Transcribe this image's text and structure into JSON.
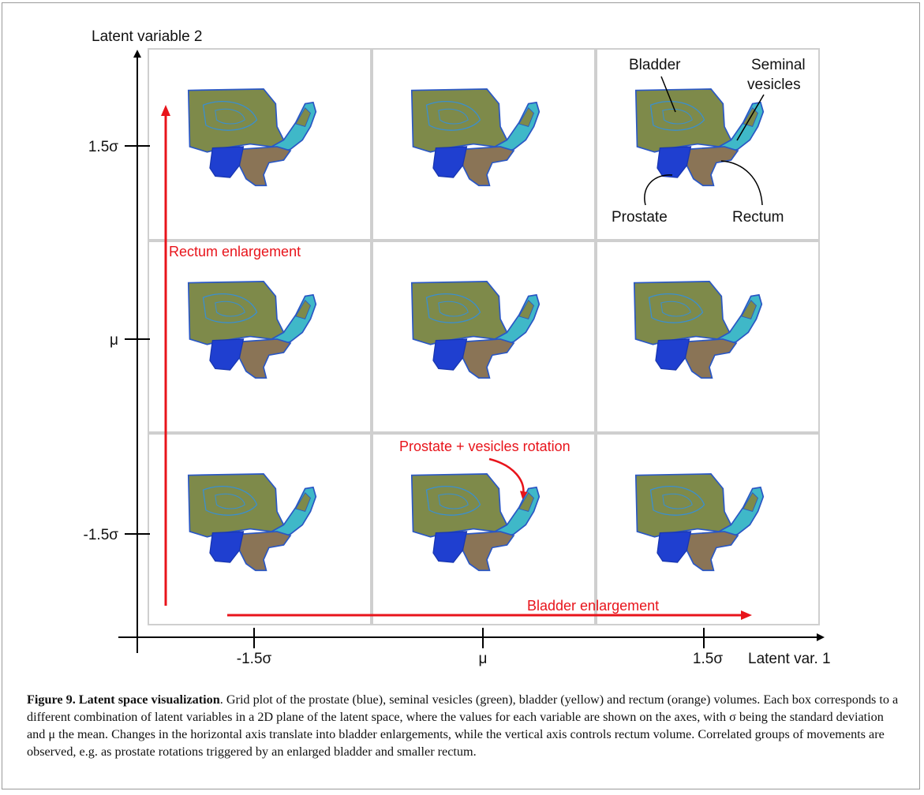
{
  "axes": {
    "x_label": "Latent var. 1",
    "y_label": "Latent variable 2",
    "x_ticks": [
      "-1.5σ",
      "μ",
      "1.5σ"
    ],
    "y_ticks": [
      "1.5σ",
      "μ",
      "-1.5σ"
    ]
  },
  "annotations": {
    "bladder": "Bladder",
    "seminal_line1": "Seminal",
    "seminal_line2": "vesicles",
    "prostate": "Prostate",
    "rectum": "Rectum",
    "rectum_enlargement": "Rectum enlargement",
    "bladder_enlargement": "Bladder enlargement",
    "rotation": "Prostate + vesicles rotation"
  },
  "colors": {
    "prostate": "#1f3fd0",
    "vesicles": "#3fb8c8",
    "bladder": "#7e8a4a",
    "rectum": "#8a7456",
    "contour": "#2a57c4",
    "arrow": "#e8141b",
    "grid": "#cfcfcf"
  },
  "caption": {
    "label": "Figure 9. Latent space visualization",
    "text": ". Grid plot of the prostate (blue), seminal vesicles (green), bladder (yellow) and rectum (orange) volumes. Each box corresponds to a different combination of latent variables in a 2D plane of the latent space, where the values for each variable are shown on the axes, with σ being the standard deviation and μ the mean. Changes in the horizontal axis translate into bladder enlargements, while the vertical axis controls rectum volume. Correlated groups of movements are observed, e.g. as prostate rotations triggered by an enlarged bladder and smaller rectum."
  }
}
